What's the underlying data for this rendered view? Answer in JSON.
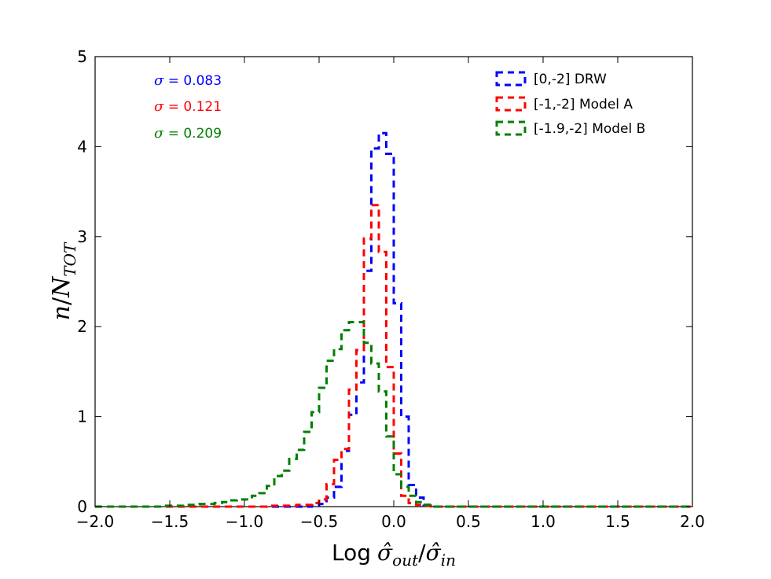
{
  "chart_data": {
    "type": "histogram",
    "xlabel": {
      "prefix": "Log",
      "num": "σ̂",
      "num_sub": "out",
      "den": "σ̂",
      "den_sub": "in"
    },
    "ylabel": {
      "n": "n",
      "N": "N",
      "N_sub": "TOT"
    },
    "xlim": [
      -2.0,
      2.0
    ],
    "ylim": [
      0,
      5
    ],
    "xticks": [
      "−2.0",
      "−1.5",
      "−1.0",
      "−0.5",
      "0.0",
      "0.5",
      "1.0",
      "1.5",
      "2.0"
    ],
    "xtick_values": [
      -2.0,
      -1.5,
      -1.0,
      -0.5,
      0.0,
      0.5,
      1.0,
      1.5,
      2.0
    ],
    "yticks": [
      "0",
      "1",
      "2",
      "3",
      "4",
      "5"
    ],
    "ytick_values": [
      0,
      1,
      2,
      3,
      4,
      5
    ],
    "bin_width": 0.05,
    "bins_start": -2.0,
    "series": [
      {
        "name": "[0,-2] DRW",
        "color": "#0000ff",
        "nonzero": {
          "-0.55": 0.01,
          "-0.5": 0.03,
          "-0.45": 0.1,
          "-0.4": 0.22,
          "-0.35": 0.62,
          "-0.3": 1.02,
          "-0.25": 1.38,
          "-0.2": 2.62,
          "-0.15": 3.98,
          "-0.1": 4.15,
          "-0.05": 3.92,
          "0.0": 2.26,
          "0.05": 1.0,
          "0.1": 0.24,
          "0.15": 0.1,
          "0.2": 0.02
        }
      },
      {
        "name": "[-1,-2] Model A",
        "color": "#ff0000",
        "nonzero": {
          "-0.8": 0.01,
          "-0.75": 0.01,
          "-0.7": 0.01,
          "-0.65": 0.02,
          "-0.6": 0.02,
          "-0.55": 0.04,
          "-0.5": 0.08,
          "-0.45": 0.25,
          "-0.4": 0.52,
          "-0.35": 0.64,
          "-0.3": 1.3,
          "-0.25": 1.74,
          "-0.2": 2.98,
          "-0.15": 3.35,
          "-0.1": 2.83,
          "-0.05": 1.55,
          "0.0": 0.59,
          "0.05": 0.12,
          "0.1": 0.04,
          "0.15": 0.02,
          "0.2": 0.01
        }
      },
      {
        "name": "[-1.9,-2] Model B",
        "color": "#008000",
        "nonzero": {
          "-1.55": 0.01,
          "-1.5": 0.01,
          "-1.45": 0.01,
          "-1.4": 0.02,
          "-1.35": 0.02,
          "-1.3": 0.03,
          "-1.25": 0.03,
          "-1.2": 0.04,
          "-1.15": 0.05,
          "-1.1": 0.07,
          "-1.05": 0.08,
          "-1.0": 0.08,
          "-0.95": 0.12,
          "-0.9": 0.15,
          "-0.85": 0.23,
          "-0.8": 0.34,
          "-0.75": 0.4,
          "-0.7": 0.53,
          "-0.65": 0.63,
          "-0.6": 0.83,
          "-0.55": 1.05,
          "-0.5": 1.32,
          "-0.45": 1.62,
          "-0.4": 1.75,
          "-0.35": 1.96,
          "-0.3": 2.05,
          "-0.25": 2.05,
          "-0.2": 1.82,
          "-0.15": 1.59,
          "-0.1": 1.28,
          "-0.05": 0.78,
          "0.0": 0.36,
          "0.05": 0.22,
          "0.1": 0.12,
          "0.15": 0.05,
          "0.2": 0.02
        }
      }
    ],
    "legend": {
      "location": "top-right",
      "entries": [
        "[0,-2] DRW",
        "[-1,-2] Model A",
        "[-1.9,-2] Model B"
      ]
    },
    "annotations": [
      {
        "symbol": "σ",
        "text": " = 0.083",
        "color": "#0000ff"
      },
      {
        "symbol": "σ",
        "text": " = 0.121",
        "color": "#ff0000"
      },
      {
        "symbol": "σ",
        "text": " = 0.209",
        "color": "#008000"
      }
    ]
  }
}
